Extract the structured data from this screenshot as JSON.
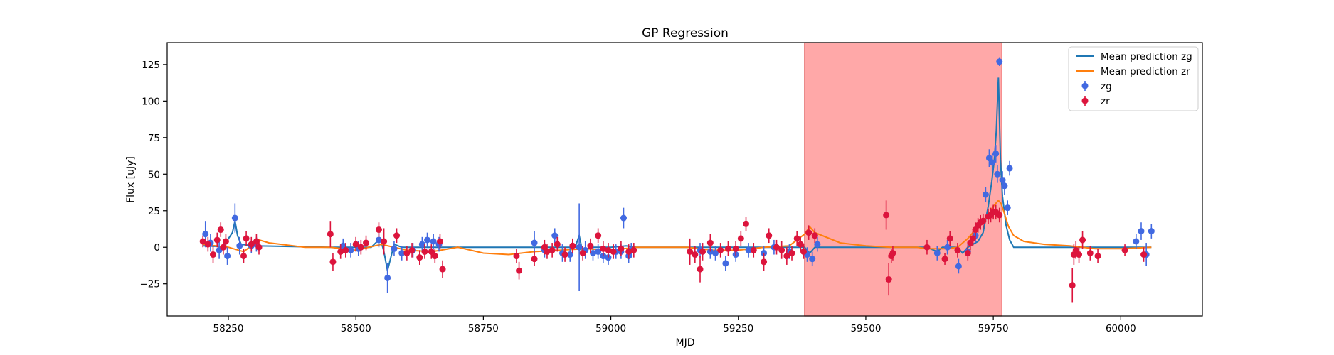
{
  "chart_data": {
    "type": "scatter",
    "title": "GP Regression",
    "xlabel": "MJD",
    "ylabel": "Flux [uJy]",
    "xlim": [
      58130,
      60160
    ],
    "ylim": [
      -47,
      140
    ],
    "xticks": [
      58250,
      58500,
      58750,
      59000,
      59250,
      59500,
      59750,
      60000
    ],
    "yticks": [
      -25,
      0,
      25,
      50,
      75,
      100,
      125
    ],
    "grid": false,
    "legend_position": "top-right",
    "highlight_span": {
      "x0": 59380,
      "x1": 59767,
      "color": "#ff0000"
    },
    "series": [
      {
        "name": "Mean prediction zg",
        "kind": "line",
        "color": "#1f77b4",
        "x": [
          58200,
          58240,
          58258,
          58263,
          58268,
          58275,
          58300,
          58450,
          58530,
          58548,
          58555,
          58562,
          58575,
          58590,
          58640,
          58720,
          58930,
          58938,
          58945,
          58960,
          59000,
          59030,
          59050,
          59150,
          59380,
          59390,
          59400,
          59450,
          59550,
          59620,
          59640,
          59650,
          59680,
          59690,
          59700,
          59720,
          59730,
          59740,
          59747,
          59752,
          59756,
          59760,
          59764,
          59768,
          59775,
          59782,
          59790,
          59810,
          59850,
          59950,
          60000,
          60060
        ],
        "y": [
          1,
          0.5,
          10,
          18,
          8,
          2,
          1,
          0,
          0,
          6,
          -3,
          -16,
          2,
          0,
          0,
          0,
          0,
          8,
          -4,
          0,
          0,
          1,
          0,
          0,
          0,
          -4,
          0,
          0,
          0,
          0,
          -3,
          0,
          0,
          -4,
          0,
          4,
          10,
          28,
          45,
          60,
          80,
          116,
          60,
          35,
          15,
          5,
          0,
          0,
          0,
          0,
          0,
          0
        ]
      },
      {
        "name": "Mean prediction zr",
        "kind": "line",
        "color": "#ff7f0e",
        "x": [
          58200,
          58250,
          58280,
          58310,
          58330,
          58400,
          58450,
          58500,
          58550,
          58600,
          58650,
          58700,
          58750,
          58800,
          58850,
          58900,
          58950,
          59000,
          59050,
          59100,
          59150,
          59200,
          59250,
          59300,
          59350,
          59380,
          59390,
          59400,
          59450,
          59500,
          59550,
          59600,
          59620,
          59640,
          59660,
          59680,
          59700,
          59720,
          59740,
          59750,
          59760,
          59765,
          59770,
          59780,
          59790,
          59810,
          59850,
          59900,
          59950,
          60000,
          60060
        ],
        "y": [
          2,
          0,
          -3,
          5,
          3,
          0,
          0,
          -2,
          2,
          -2,
          -3,
          0,
          -4,
          -5,
          -3,
          -2,
          -1,
          -2,
          0,
          0,
          0,
          -2,
          -2,
          0,
          1,
          9,
          14,
          10,
          3,
          1,
          0,
          0,
          -1,
          -1,
          -1,
          0,
          6,
          14,
          22,
          28,
          32,
          30,
          25,
          14,
          8,
          4,
          2,
          1,
          -1,
          -1,
          0
        ]
      },
      {
        "name": "zg",
        "kind": "errorbar",
        "color": "#4169e1",
        "x": [
          58205,
          58215,
          58232,
          58248,
          58263,
          58272,
          58295,
          58305,
          58475,
          58490,
          58505,
          58545,
          58562,
          58575,
          58590,
          58612,
          58630,
          58640,
          58652,
          58663,
          58850,
          58870,
          58890,
          58905,
          58920,
          58938,
          58950,
          58965,
          58975,
          58985,
          58995,
          59010,
          59020,
          59025,
          59035,
          59040,
          59175,
          59195,
          59205,
          59225,
          59245,
          59270,
          59300,
          59320,
          59350,
          59385,
          59395,
          59405,
          59640,
          59660,
          59682,
          59700,
          59715,
          59735,
          59742,
          59748,
          59755,
          59758,
          59762,
          59768,
          59772,
          59778,
          59782,
          60030,
          60040,
          60050,
          60060
        ],
        "y": [
          9,
          3,
          -2,
          -6,
          20,
          1,
          1,
          2,
          1,
          -2,
          -1,
          5,
          -21,
          -1,
          -4,
          -2,
          2,
          5,
          4,
          2,
          3,
          -2,
          8,
          -4,
          -5,
          0,
          -2,
          -4,
          -3,
          -6,
          -7,
          -3,
          -3,
          20,
          -6,
          -2,
          -2,
          -3,
          -4,
          -11,
          -5,
          -2,
          -4,
          0,
          -3,
          -5,
          -8,
          2,
          -4,
          0,
          -13,
          -3,
          8,
          36,
          61,
          58,
          64,
          50,
          127,
          46,
          42,
          27,
          54,
          4,
          11,
          -5,
          11
        ],
        "err": [
          9,
          6,
          6,
          6,
          10,
          6,
          5,
          5,
          5,
          5,
          5,
          5,
          10,
          5,
          5,
          5,
          5,
          5,
          5,
          5,
          8,
          5,
          5,
          6,
          5,
          30,
          6,
          5,
          5,
          5,
          5,
          5,
          5,
          7,
          5,
          5,
          5,
          5,
          5,
          5,
          5,
          5,
          5,
          5,
          5,
          5,
          5,
          5,
          5,
          5,
          5,
          5,
          5,
          5,
          6,
          6,
          6,
          6,
          3,
          6,
          6,
          5,
          5,
          5,
          6,
          8,
          5
        ]
      },
      {
        "name": "zr",
        "kind": "errorbar",
        "color": "#dc143c",
        "x": [
          58200,
          58210,
          58220,
          58228,
          58235,
          58240,
          58245,
          58280,
          58285,
          58295,
          58305,
          58310,
          58450,
          58455,
          58470,
          58480,
          58500,
          58510,
          58520,
          58545,
          58555,
          58580,
          58600,
          58610,
          58625,
          58635,
          58648,
          58655,
          58665,
          58670,
          58815,
          58820,
          58850,
          58870,
          58875,
          58885,
          58895,
          58910,
          58925,
          58945,
          58960,
          58975,
          58985,
          58995,
          59005,
          59020,
          59035,
          59045,
          59155,
          59165,
          59175,
          59180,
          59195,
          59215,
          59230,
          59245,
          59255,
          59265,
          59280,
          59300,
          59310,
          59325,
          59335,
          59345,
          59355,
          59365,
          59372,
          59378,
          59388,
          59400,
          59540,
          59545,
          59550,
          59553,
          59620,
          59655,
          59665,
          59680,
          59700,
          59705,
          59710,
          59715,
          59720,
          59725,
          59730,
          59740,
          59745,
          59750,
          59755,
          59762,
          59905,
          59908,
          59912,
          59918,
          59925,
          59940,
          59955,
          60008,
          60045
        ],
        "y": [
          4,
          2,
          -5,
          5,
          12,
          0,
          4,
          -6,
          6,
          2,
          4,
          0,
          9,
          -10,
          -3,
          -2,
          2,
          0,
          3,
          12,
          4,
          8,
          -4,
          -2,
          -7,
          -3,
          -3,
          -6,
          4,
          -15,
          -6,
          -16,
          -8,
          0,
          -3,
          -2,
          2,
          -5,
          1,
          -4,
          1,
          8,
          -1,
          -2,
          -3,
          -1,
          -3,
          -2,
          -3,
          -5,
          -15,
          -3,
          3,
          -2,
          -1,
          -1,
          6,
          16,
          -2,
          -10,
          8,
          0,
          -2,
          -6,
          -4,
          6,
          2,
          -3,
          10,
          8,
          22,
          -22,
          -6,
          -4,
          0,
          -8,
          6,
          -2,
          -4,
          3,
          6,
          12,
          15,
          17,
          18,
          21,
          22,
          24,
          24,
          22,
          -26,
          -5,
          -2,
          -5,
          5,
          -4,
          -6,
          -2,
          -5
        ],
        "err": [
          4,
          5,
          6,
          5,
          5,
          5,
          5,
          5,
          5,
          5,
          5,
          5,
          9,
          6,
          5,
          5,
          5,
          5,
          5,
          5,
          9,
          5,
          5,
          5,
          5,
          5,
          5,
          5,
          5,
          6,
          5,
          6,
          5,
          5,
          5,
          5,
          5,
          5,
          5,
          5,
          5,
          5,
          5,
          5,
          5,
          5,
          5,
          5,
          9,
          6,
          9,
          6,
          6,
          5,
          5,
          5,
          5,
          5,
          5,
          6,
          5,
          5,
          6,
          6,
          5,
          5,
          5,
          5,
          5,
          5,
          10,
          11,
          5,
          5,
          5,
          4,
          5,
          5,
          5,
          5,
          5,
          5,
          5,
          5,
          5,
          5,
          5,
          5,
          5,
          5,
          12,
          7,
          6,
          6,
          6,
          5,
          5,
          4,
          5
        ]
      }
    ]
  }
}
